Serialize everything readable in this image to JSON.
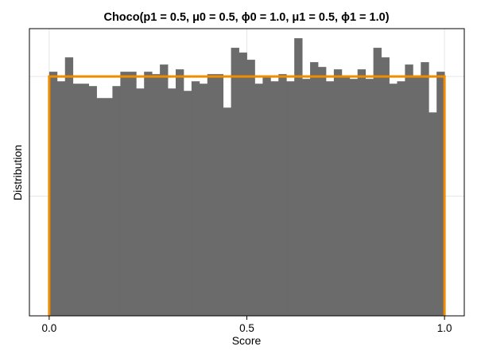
{
  "chart_data": {
    "type": "histogram",
    "title": "Choco(p1 = 0.5, μ0 = 0.5, ϕ0 = 1.0, μ1 = 0.5, ϕ1 = 1.0)",
    "xlabel": "Score",
    "ylabel": "Distribution",
    "xlim": [
      -0.05,
      1.05
    ],
    "ylim": [
      0,
      1.2
    ],
    "x_ticks": [
      0.0,
      0.5,
      1.0
    ],
    "x_tick_labels": [
      "0.0",
      "0.5",
      "1.0"
    ],
    "y_ticks": [
      0.5,
      1.0
    ],
    "y_tick_labels": [],
    "grid": true,
    "bin_edges": [
      0.0,
      0.02,
      0.04,
      0.06,
      0.08,
      0.1,
      0.12,
      0.14,
      0.16,
      0.18,
      0.2,
      0.22,
      0.24,
      0.26,
      0.28,
      0.3,
      0.32,
      0.34,
      0.36,
      0.38,
      0.4,
      0.42,
      0.44,
      0.46,
      0.48,
      0.5,
      0.52,
      0.54,
      0.56,
      0.58,
      0.6,
      0.62,
      0.64,
      0.66,
      0.68,
      0.7,
      0.72,
      0.74,
      0.76,
      0.78,
      0.8,
      0.82,
      0.84,
      0.86,
      0.88,
      0.9,
      0.92,
      0.94,
      0.96,
      0.98,
      1.0
    ],
    "histogram": [
      1.02,
      0.98,
      1.08,
      0.97,
      0.97,
      0.96,
      0.91,
      0.91,
      0.96,
      1.02,
      1.02,
      0.95,
      1.02,
      1.01,
      1.05,
      0.95,
      1.03,
      0.94,
      0.98,
      0.97,
      1.01,
      1.01,
      0.87,
      1.12,
      1.1,
      1.07,
      0.97,
      1.0,
      0.98,
      1.01,
      0.98,
      1.16,
      0.99,
      1.06,
      1.04,
      0.98,
      1.03,
      1.0,
      0.99,
      1.03,
      0.99,
      1.12,
      1.08,
      0.97,
      0.98,
      1.05,
      1.0,
      1.06,
      0.85,
      1.02
    ],
    "histogram_color": "#6b6b6b",
    "density_line": {
      "x": [
        0.0,
        0.0,
        1.0,
        1.0
      ],
      "y": [
        0.0,
        1.0,
        1.0,
        0.0
      ],
      "color": "#f08c00"
    }
  }
}
